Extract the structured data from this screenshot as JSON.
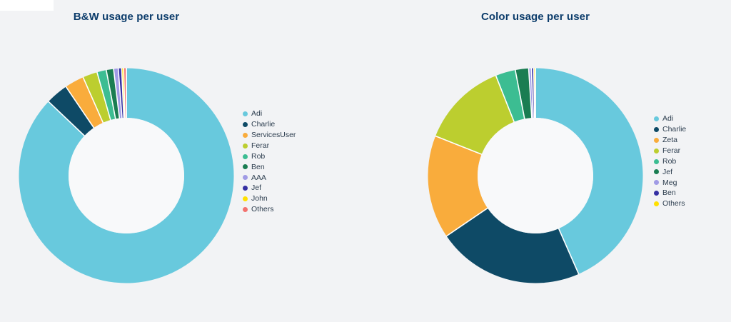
{
  "page": {
    "background_color": "#F2F3F5",
    "donut_hole_color": "#F8F9FA",
    "title_color": "#0C3C6B",
    "legend_text_color": "#2D3E4F",
    "slice_separator_color": "#FFFFFF"
  },
  "chart_data": [
    {
      "type": "pie",
      "subtype": "donut",
      "title": "B&W usage per user",
      "labels": [
        "Adi",
        "Charlie",
        "ServicesUser",
        "Ferar",
        "Rob",
        "Ben",
        "AAA",
        "Jef",
        "John",
        "Others"
      ],
      "values_percent": [
        87.1,
        3.4,
        2.9,
        2.2,
        1.4,
        1.1,
        0.7,
        0.5,
        0.3,
        0.4
      ],
      "colors": [
        "#68C9DD",
        "#0E4A66",
        "#F9AC3C",
        "#BCCE2F",
        "#3CBD92",
        "#1A7D52",
        "#A09BE5",
        "#3530A3",
        "#FFE000",
        "#F3726F"
      ],
      "legend_position": "right",
      "legend_marker": "circle",
      "start_angle_deg": 0,
      "direction": "clockwise",
      "inner_radius_ratio": 0.54,
      "data_labels_shown": false
    },
    {
      "type": "pie",
      "subtype": "donut",
      "title": "Color usage per user",
      "labels": [
        "Adi",
        "Charlie",
        "Zeta",
        "Ferar",
        "Rob",
        "Jef",
        "Meg",
        "Ben",
        "Others"
      ],
      "values_percent": [
        43.4,
        22.1,
        15.5,
        13.0,
        3.0,
        2.0,
        0.4,
        0.35,
        0.25
      ],
      "colors": [
        "#68C9DD",
        "#0E4A66",
        "#F9AC3C",
        "#BCCE2F",
        "#3CBD92",
        "#1A7D52",
        "#A09BE5",
        "#3530A3",
        "#FFE000"
      ],
      "legend_position": "right",
      "legend_marker": "circle",
      "start_angle_deg": 0,
      "direction": "clockwise",
      "inner_radius_ratio": 0.54,
      "data_labels_shown": false
    }
  ]
}
